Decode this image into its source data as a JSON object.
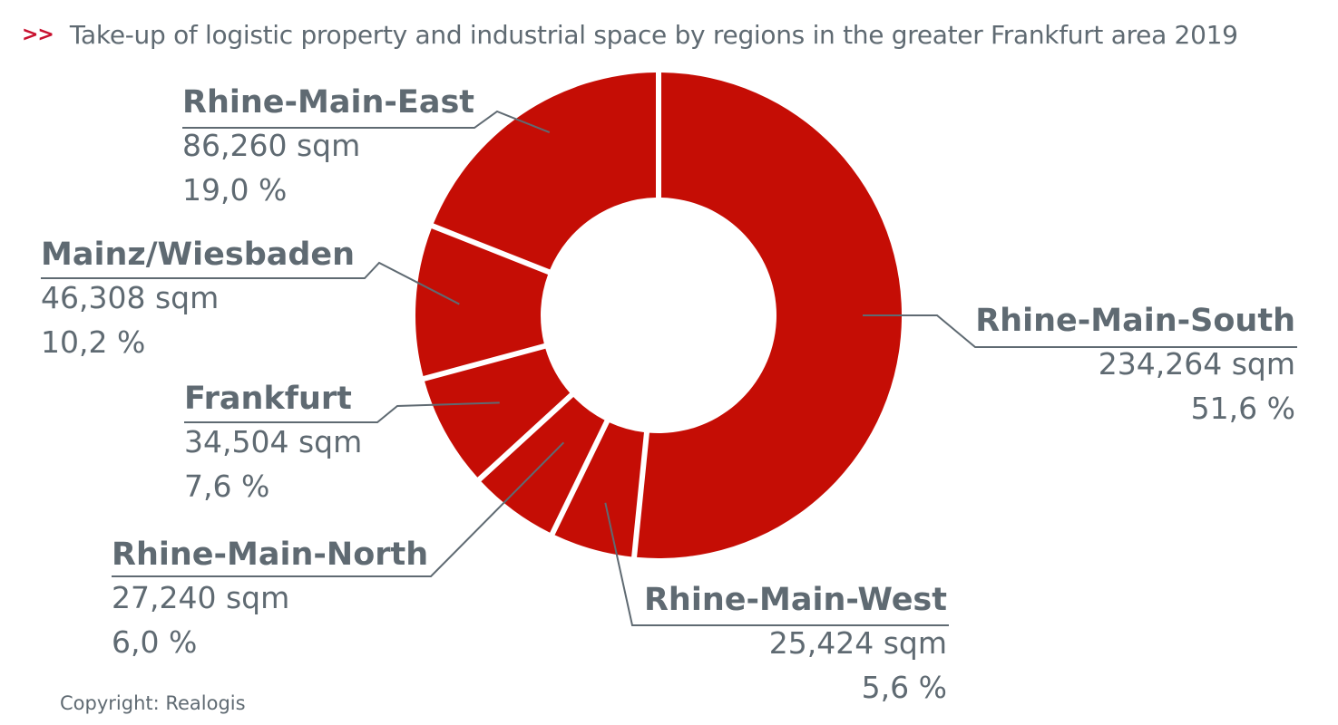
{
  "header": {
    "marker": ">>",
    "title": "Take-up of logistic property and industrial space by regions in the greater Frankfurt area 2019"
  },
  "footer": {
    "copyright": "Copyright: Realogis"
  },
  "colors": {
    "slice": "#c50d05",
    "text": "#5f6a72",
    "marker": "#c8102e",
    "leader": "#5f6a72"
  },
  "chart_data": {
    "type": "pie",
    "variant": "donut",
    "title": "Take-up of logistic property and industrial space by regions in the greater Frankfurt area 2019",
    "unit": "sqm",
    "legend": "none",
    "slices": [
      {
        "label": "Rhine-Main-South",
        "value": 234264,
        "value_text": "234,264 sqm",
        "percent": 51.6,
        "percent_text": "51,6 %"
      },
      {
        "label": "Rhine-Main-West",
        "value": 25424,
        "value_text": "25,424 sqm",
        "percent": 5.6,
        "percent_text": "5,6 %"
      },
      {
        "label": "Rhine-Main-North",
        "value": 27240,
        "value_text": "27,240 sqm",
        "percent": 6.0,
        "percent_text": "6,0 %"
      },
      {
        "label": "Frankfurt",
        "value": 34504,
        "value_text": "34,504 sqm",
        "percent": 7.6,
        "percent_text": "7,6 %"
      },
      {
        "label": "Mainz/Wiesbaden",
        "value": 46308,
        "value_text": "46,308 sqm",
        "percent": 10.2,
        "percent_text": "10,2 %"
      },
      {
        "label": "Rhine-Main-East",
        "value": 86260,
        "value_text": "86,260 sqm",
        "percent": 19.0,
        "percent_text": "19,0 %"
      }
    ]
  }
}
